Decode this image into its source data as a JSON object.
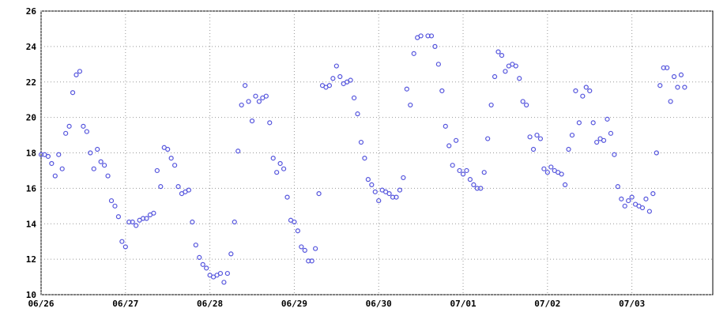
{
  "chart_data": {
    "type": "scatter",
    "x": [
      0,
      1,
      2,
      3,
      4,
      5,
      6,
      7,
      8,
      9,
      10,
      11,
      12,
      13,
      14,
      15,
      16,
      17,
      18,
      19,
      20,
      21,
      22,
      23,
      24,
      25,
      26,
      27,
      28,
      29,
      30,
      31,
      32,
      33,
      34,
      35,
      36,
      37,
      38,
      39,
      40,
      41,
      42,
      43,
      44,
      45,
      46,
      47,
      48,
      49,
      50,
      51,
      52,
      53,
      54,
      55,
      56,
      57,
      58,
      59,
      60,
      61,
      62,
      63,
      64,
      65,
      66,
      67,
      68,
      69,
      70,
      71,
      72,
      73,
      74,
      75,
      76,
      77,
      78,
      79,
      80,
      81,
      82,
      83,
      84,
      85,
      86,
      87,
      88,
      89,
      90,
      91,
      92,
      93,
      94,
      95,
      96,
      97,
      98,
      99,
      100,
      101,
      102,
      103,
      104,
      105,
      106,
      107,
      108,
      110,
      111,
      112,
      113,
      114,
      115,
      116,
      117,
      118,
      119,
      120,
      121,
      122,
      123,
      124,
      125,
      126,
      127,
      128,
      129,
      130,
      131,
      132,
      133,
      134,
      135,
      136,
      137,
      138,
      139,
      140,
      141,
      142,
      143,
      144,
      145,
      146,
      147,
      148,
      149,
      150,
      151,
      152,
      153,
      154,
      155,
      156,
      157,
      158,
      159,
      160,
      161,
      162,
      163,
      164,
      165,
      166,
      167,
      168,
      169,
      170,
      171,
      172,
      173,
      174,
      175,
      176,
      177,
      178,
      179,
      180,
      181,
      182,
      183
    ],
    "values": [
      17.9,
      17.9,
      17.8,
      17.4,
      16.7,
      17.9,
      17.1,
      19.1,
      19.5,
      21.4,
      22.4,
      22.6,
      19.5,
      19.2,
      18.0,
      17.1,
      18.2,
      17.5,
      17.3,
      16.7,
      15.3,
      15.0,
      14.4,
      13.0,
      12.7,
      14.1,
      14.1,
      13.9,
      14.2,
      14.3,
      14.3,
      14.5,
      14.6,
      17.0,
      16.1,
      18.3,
      18.2,
      17.7,
      17.3,
      16.1,
      15.7,
      15.8,
      15.9,
      14.1,
      12.8,
      12.1,
      11.7,
      11.5,
      11.1,
      11.0,
      11.1,
      11.2,
      10.7,
      11.2,
      12.3,
      14.1,
      18.1,
      20.7,
      21.8,
      20.9,
      19.8,
      21.2,
      20.9,
      21.1,
      21.2,
      19.7,
      17.7,
      16.9,
      17.4,
      17.1,
      15.5,
      14.2,
      14.1,
      13.6,
      12.7,
      12.5,
      11.9,
      11.9,
      12.6,
      15.7,
      21.8,
      21.7,
      21.8,
      22.2,
      22.9,
      22.3,
      21.9,
      22.0,
      22.1,
      21.1,
      20.2,
      18.6,
      17.7,
      16.5,
      16.2,
      15.8,
      15.3,
      15.9,
      15.8,
      15.7,
      15.5,
      15.5,
      15.9,
      16.6,
      21.6,
      20.7,
      23.6,
      24.5,
      24.6,
      24.6,
      24.6,
      24.0,
      23.0,
      21.5,
      19.5,
      18.4,
      17.3,
      18.7,
      17.0,
      16.8,
      17.0,
      16.5,
      16.2,
      16.0,
      16.0,
      16.9,
      18.8,
      20.7,
      22.3,
      23.7,
      23.5,
      22.6,
      22.9,
      23.0,
      22.9,
      22.2,
      20.9,
      20.7,
      18.9,
      18.2,
      19.0,
      18.8,
      17.1,
      16.9,
      17.2,
      17.0,
      16.9,
      16.8,
      16.2,
      18.2,
      19.0,
      21.5,
      19.7,
      21.2,
      21.7,
      21.5,
      19.7,
      18.6,
      18.8,
      18.7,
      19.9,
      19.1,
      17.9,
      16.1,
      15.4,
      15.0,
      15.3,
      15.5,
      15.1,
      15.0,
      14.9,
      15.4,
      14.7,
      15.7,
      18.0,
      21.8,
      22.8,
      22.8,
      20.9,
      22.3,
      21.7,
      22.4,
      21.7
    ],
    "color": "#5555dd",
    "xlim": [
      0,
      191
    ],
    "xticks": [
      {
        "value": 0,
        "label": "06/26"
      },
      {
        "value": 24,
        "label": "06/27"
      },
      {
        "value": 48,
        "label": "06/28"
      },
      {
        "value": 72,
        "label": "06/29"
      },
      {
        "value": 96,
        "label": "06/30"
      },
      {
        "value": 120,
        "label": "07/01"
      },
      {
        "value": 144,
        "label": "07/02"
      },
      {
        "value": 168,
        "label": "07/03"
      }
    ],
    "ylim": [
      10,
      26
    ],
    "yticks": [
      10,
      12,
      14,
      16,
      18,
      20,
      22,
      24,
      26
    ],
    "grid": true
  }
}
